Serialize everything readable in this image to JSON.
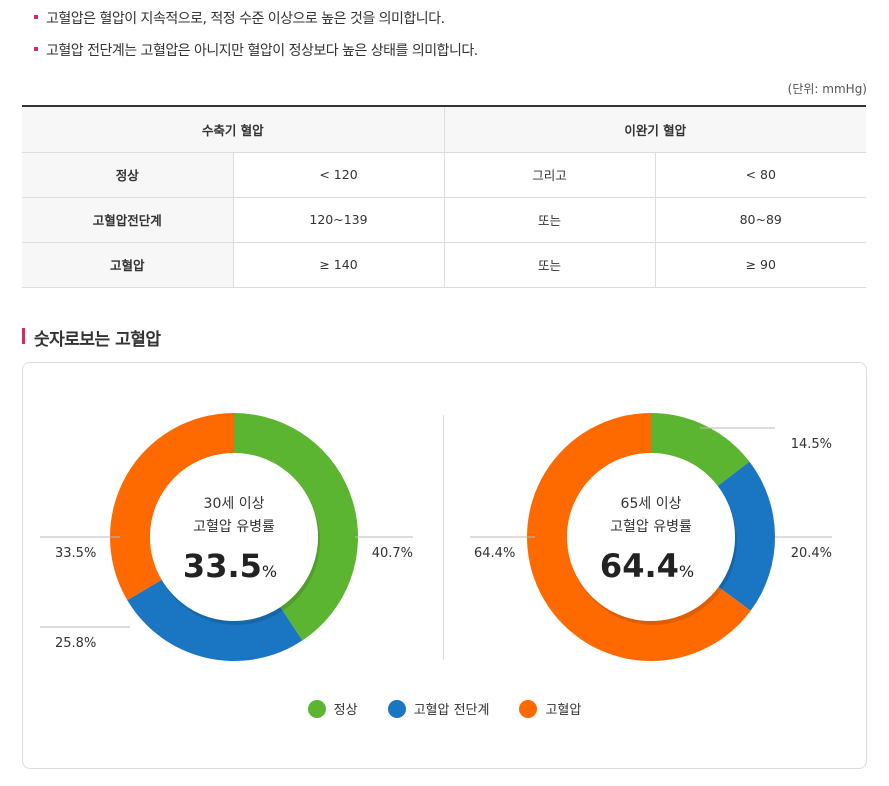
{
  "bullets": [
    "고혈압은 혈압이 지속적으로, 적정 수준 이상으로 높은 것을 의미합니다.",
    "고혈압 전단계는 고혈압은 아니지만 혈압이 정상보다 높은 상태를 의미합니다."
  ],
  "unit": "(단위: mmHg)",
  "table": {
    "headers": [
      "수축기 혈압",
      "이완기 혈압"
    ],
    "rows": [
      [
        "정상",
        "< 120",
        "그리고",
        "< 80"
      ],
      [
        "고혈압전단계",
        "120~139",
        "또는",
        "80~89"
      ],
      [
        "고혈압",
        "≥ 140",
        "또는",
        "≥ 90"
      ]
    ]
  },
  "section_title": "숫자로보는 고혈압",
  "colors": {
    "normal": "#5cb531",
    "pre": "#1a76c2",
    "high": "#ff6a00"
  },
  "chart_data": [
    {
      "type": "pie",
      "title_line1": "30세 이상",
      "title_line2": "고혈압 유병률",
      "center_value": "33.5",
      "center_unit": "%",
      "categories": [
        "정상",
        "고혈압 전단계",
        "고혈압"
      ],
      "values": [
        40.7,
        25.8,
        33.5
      ],
      "labels": [
        "40.7%",
        "25.8%",
        "33.5%"
      ]
    },
    {
      "type": "pie",
      "title_line1": "65세 이상",
      "title_line2": "고혈압 유병률",
      "center_value": "64.4",
      "center_unit": "%",
      "categories": [
        "정상",
        "고혈압 전단계",
        "고혈압"
      ],
      "values": [
        14.5,
        20.4,
        64.4
      ],
      "labels": [
        "14.5%",
        "20.4%",
        "64.4%"
      ]
    }
  ],
  "legend": [
    "정상",
    "고혈압 전단계",
    "고혈압"
  ]
}
